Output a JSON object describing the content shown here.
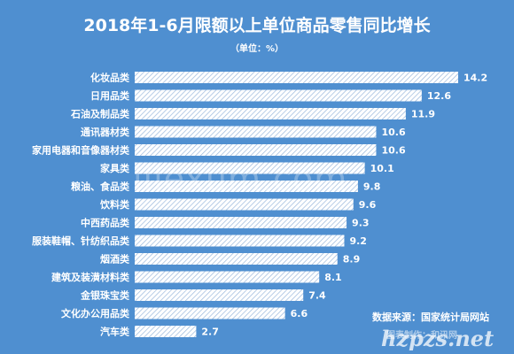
{
  "chart_data": {
    "type": "bar",
    "orientation": "horizontal",
    "title": "2018年1-6月限额以上单位商品零售同比增长",
    "subtitle": "（单位：%）",
    "categories": [
      "化妆品类",
      "日用品类",
      "石油及制品类",
      "通讯器材类",
      "家用电器和音像器材类",
      "家具类",
      "粮油、食品类",
      "饮料类",
      "中西药品类",
      "服装鞋帽、针纺织品类",
      "烟酒类",
      "建筑及装潢材料类",
      "金银珠宝类",
      "文化办公用品类",
      "汽车类"
    ],
    "values": [
      14.2,
      12.6,
      11.9,
      10.6,
      10.6,
      10.1,
      9.8,
      9.6,
      9.3,
      9.2,
      8.9,
      8.1,
      7.4,
      6.6,
      2.7
    ],
    "value_labels": [
      "14.2",
      "12.6",
      "11.9",
      "10.6",
      "10.6",
      "10.1",
      "9.8",
      "9.6",
      "9.3",
      "9.2",
      "8.9",
      "8.1",
      "7.4",
      "6.6",
      "2.7"
    ],
    "xlim": [
      0,
      14.2
    ],
    "grid": false,
    "bar_color": "#ffffff",
    "bar_pattern": "diagonal-hatch",
    "background": "#4f8fd0"
  },
  "watermark": "lilexum.com",
  "source_text": "数据来源：国家统计局网站",
  "credit_text": "图表制作：和讯网",
  "site_mark": "hzpzs.net"
}
